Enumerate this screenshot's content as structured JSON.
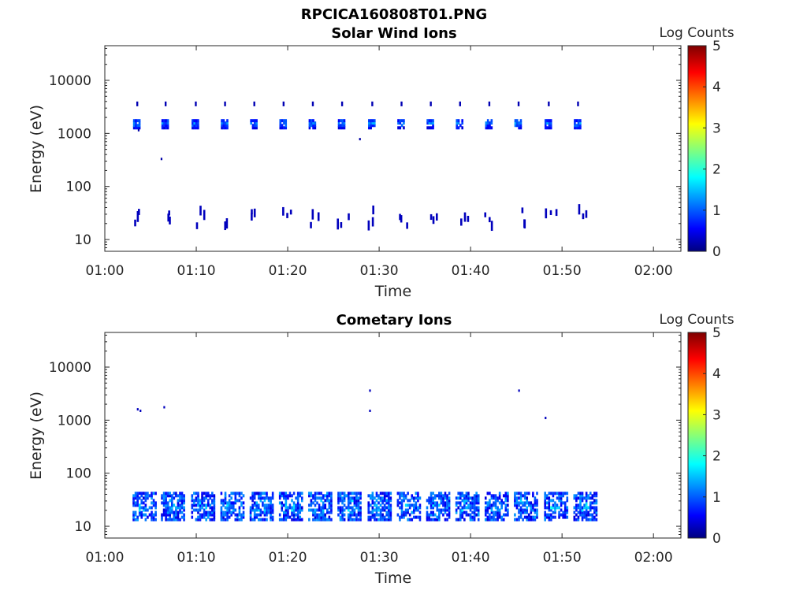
{
  "figure": {
    "title": "RPCICA160808T01.PNG"
  },
  "chart_data": [
    {
      "type": "heatmap",
      "title": "Solar Wind Ions",
      "xlabel": "Time",
      "ylabel": "Energy (eV)",
      "x_unit": "minutes after 01:00",
      "xlim": [
        0,
        63
      ],
      "x_ticks": [
        {
          "value": 0,
          "label": "01:00"
        },
        {
          "value": 10,
          "label": "01:10"
        },
        {
          "value": 20,
          "label": "01:20"
        },
        {
          "value": 30,
          "label": "01:30"
        },
        {
          "value": 40,
          "label": "01:40"
        },
        {
          "value": 50,
          "label": "01:50"
        },
        {
          "value": 60,
          "label": "02:00"
        }
      ],
      "y_scale": "log",
      "ylim": [
        6,
        45000
      ],
      "y_ticks": [
        {
          "value": 10,
          "label": "10"
        },
        {
          "value": 100,
          "label": "100"
        },
        {
          "value": 1000,
          "label": "1000"
        },
        {
          "value": 10000,
          "label": "10000"
        }
      ],
      "colorbar": {
        "label": "Log Counts",
        "min": 0,
        "max": 5,
        "ticks": [
          "0",
          "1",
          "2",
          "3",
          "4",
          "5"
        ]
      },
      "sweeps": [
        3.5,
        6.6,
        9.9,
        13.1,
        16.3,
        19.5,
        22.7,
        25.9,
        29.2,
        32.4,
        35.6,
        38.8,
        42.0,
        45.2,
        48.5,
        51.7
      ],
      "high_energy_band": {
        "center_eV": 1550,
        "log_counts": 1.3
      },
      "high_energy_marks_eV": 3600,
      "low_energy_band": {
        "center_eV": 27,
        "log_counts": 0.3
      },
      "isolated_points": [
        {
          "t": 3.7,
          "energy": 1150,
          "log_counts": 0.2
        },
        {
          "t": 6.2,
          "energy": 330,
          "log_counts": 0.2
        },
        {
          "t": 27.9,
          "energy": 780,
          "log_counts": 0.2
        }
      ]
    },
    {
      "type": "heatmap",
      "title": "Cometary Ions",
      "xlabel": "Time",
      "ylabel": "Energy (eV)",
      "x_unit": "minutes after 01:00",
      "xlim": [
        0,
        63
      ],
      "x_ticks": [
        {
          "value": 0,
          "label": "01:00"
        },
        {
          "value": 10,
          "label": "01:10"
        },
        {
          "value": 20,
          "label": "01:20"
        },
        {
          "value": 30,
          "label": "01:30"
        },
        {
          "value": 40,
          "label": "01:40"
        },
        {
          "value": 50,
          "label": "01:50"
        },
        {
          "value": 60,
          "label": "02:00"
        }
      ],
      "y_scale": "log",
      "ylim": [
        6,
        45000
      ],
      "y_ticks": [
        {
          "value": 10,
          "label": "10"
        },
        {
          "value": 100,
          "label": "100"
        },
        {
          "value": 1000,
          "label": "1000"
        },
        {
          "value": 10000,
          "label": "10000"
        }
      ],
      "colorbar": {
        "label": "Log Counts",
        "min": 0,
        "max": 5,
        "ticks": [
          "0",
          "1",
          "2",
          "3",
          "4",
          "5"
        ]
      },
      "sweeps": [
        3.5,
        6.6,
        9.9,
        13.1,
        16.3,
        19.5,
        22.7,
        25.9,
        29.2,
        32.4,
        35.6,
        38.8,
        42.0,
        45.2,
        48.5,
        51.7
      ],
      "low_energy_band": {
        "center_eV": 26,
        "log_counts": 1.1
      },
      "isolated_points": [
        {
          "t": 3.6,
          "energy": 1600,
          "log_counts": 0.3
        },
        {
          "t": 3.9,
          "energy": 1500,
          "log_counts": 0.3
        },
        {
          "t": 6.5,
          "energy": 1750,
          "log_counts": 0.3
        },
        {
          "t": 29.0,
          "energy": 3600,
          "log_counts": 0.3
        },
        {
          "t": 29.0,
          "energy": 1500,
          "log_counts": 0.3
        },
        {
          "t": 45.3,
          "energy": 3600,
          "log_counts": 0.3
        },
        {
          "t": 48.2,
          "energy": 1100,
          "log_counts": 0.3
        }
      ]
    }
  ]
}
